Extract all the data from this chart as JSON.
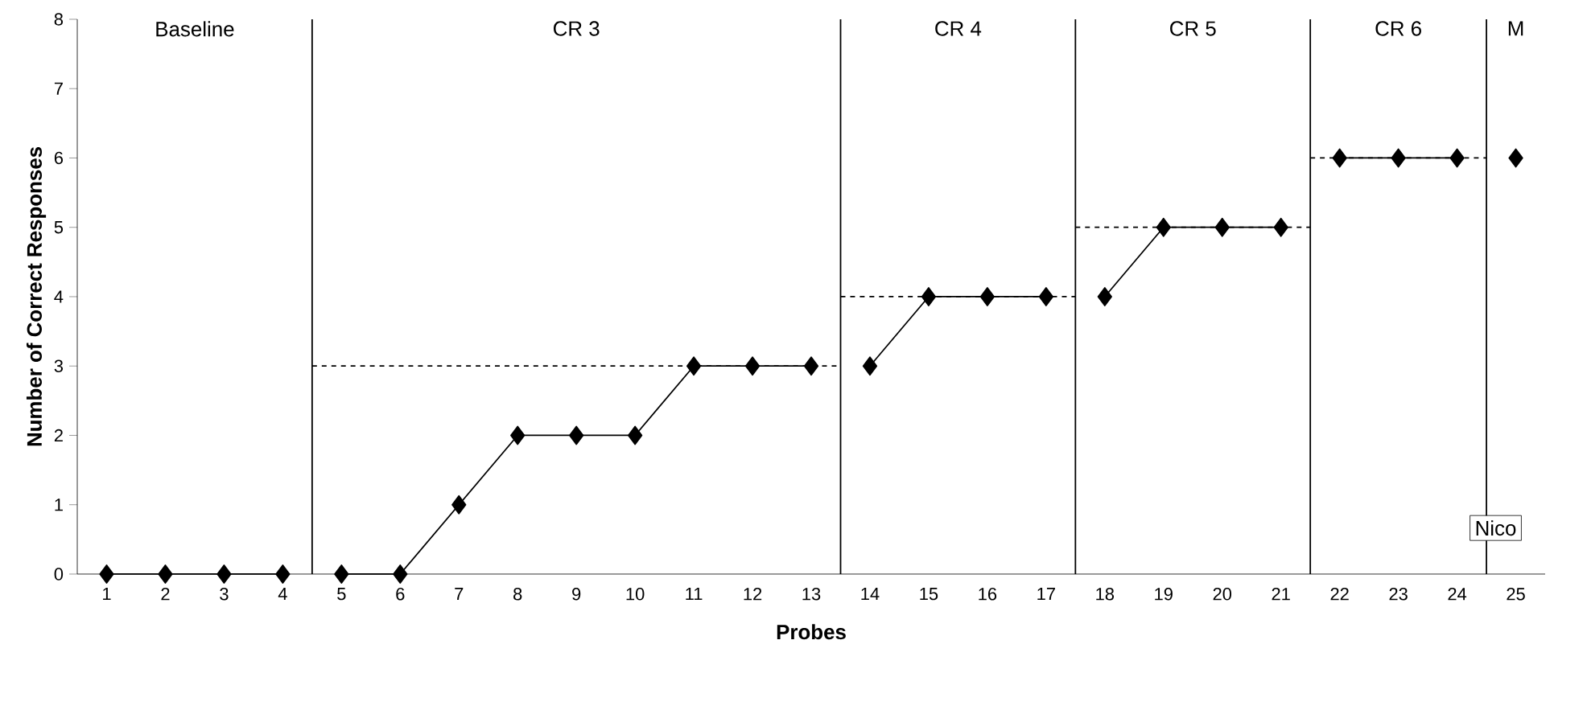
{
  "chart_data": {
    "type": "line",
    "xlabel": "Probes",
    "ylabel": "Number of Correct Responses",
    "xlim": [
      0.5,
      25.5
    ],
    "xticks": [
      1,
      2,
      3,
      4,
      5,
      6,
      7,
      8,
      9,
      10,
      11,
      12,
      13,
      14,
      15,
      16,
      17,
      18,
      19,
      20,
      21,
      22,
      23,
      24,
      25
    ],
    "ylim": [
      0,
      8
    ],
    "yticks": [
      0,
      1,
      2,
      3,
      4,
      5,
      6,
      7,
      8
    ],
    "marker": "diamond",
    "series": [
      {
        "color": "#000000",
        "x": [
          1,
          2,
          3,
          4
        ],
        "values": [
          0,
          0,
          0,
          0
        ]
      },
      {
        "color": "#000000",
        "x": [
          5,
          6,
          7,
          8,
          9,
          10,
          11,
          12,
          13
        ],
        "values": [
          0,
          0,
          1,
          2,
          2,
          2,
          3,
          3,
          3
        ]
      },
      {
        "color": "#000000",
        "x": [
          14,
          15,
          16,
          17
        ],
        "values": [
          3,
          4,
          4,
          4
        ]
      },
      {
        "color": "#000000",
        "x": [
          18,
          19,
          20,
          21
        ],
        "values": [
          4,
          5,
          5,
          5
        ]
      },
      {
        "color": "#000000",
        "x": [
          22,
          23,
          24
        ],
        "values": [
          6,
          6,
          6
        ]
      },
      {
        "color": "#000000",
        "x": [
          25
        ],
        "values": [
          6
        ]
      },
      {
        "color": "#000000",
        "x": [
          4.5,
          13.5
        ],
        "values": [
          3,
          3
        ],
        "marker": "none",
        "line_style": "dashed"
      },
      {
        "color": "#000000",
        "x": [
          13.5,
          17.5
        ],
        "values": [
          4,
          4
        ],
        "marker": "none",
        "line_style": "dashed"
      },
      {
        "color": "#000000",
        "x": [
          17.5,
          21.5
        ],
        "values": [
          5,
          5
        ],
        "marker": "none",
        "line_style": "dashed"
      },
      {
        "color": "#000000",
        "x": [
          21.5,
          24.5
        ],
        "values": [
          6,
          6
        ],
        "marker": "none",
        "line_style": "dashed"
      }
    ],
    "ref_lines": [
      {
        "axis": "x",
        "value": 4.5
      },
      {
        "axis": "x",
        "value": 13.5
      },
      {
        "axis": "x",
        "value": 17.5
      },
      {
        "axis": "x",
        "value": 21.5
      },
      {
        "axis": "x",
        "value": 24.5
      }
    ],
    "annotations": [
      "Baseline",
      "CR 3",
      "CR 4",
      "CR 5",
      "CR 6",
      "M",
      "Nico"
    ]
  }
}
